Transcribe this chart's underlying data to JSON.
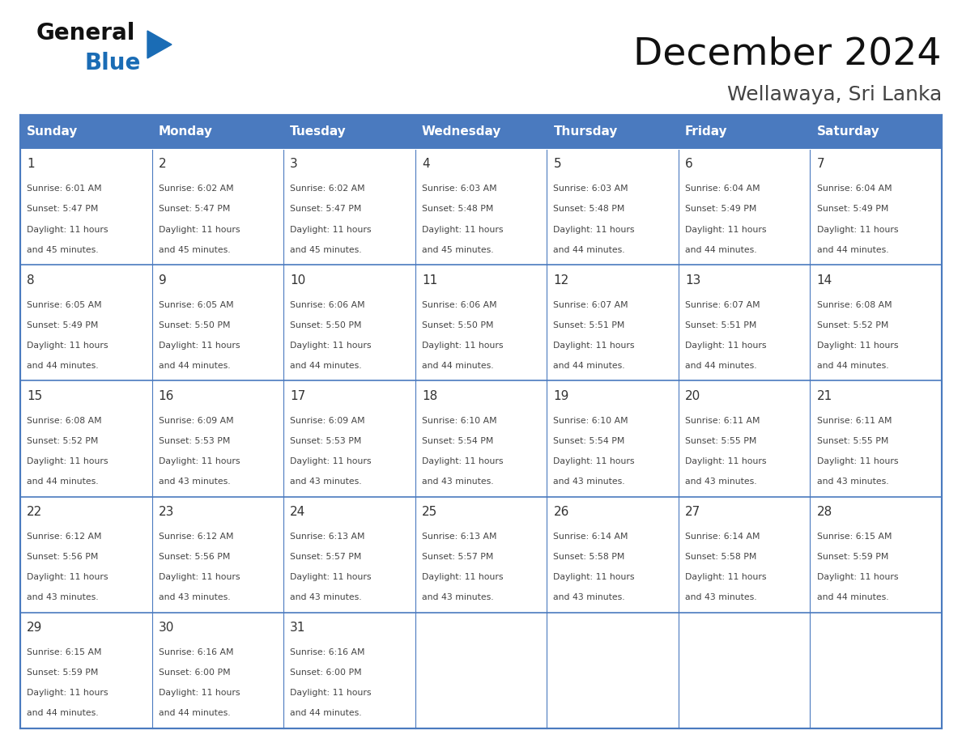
{
  "title": "December 2024",
  "subtitle": "Wellawaya, Sri Lanka",
  "days_of_week": [
    "Sunday",
    "Monday",
    "Tuesday",
    "Wednesday",
    "Thursday",
    "Friday",
    "Saturday"
  ],
  "header_bg_color": "#4a7abf",
  "header_text_color": "#FFFFFF",
  "cell_bg_color": "#FFFFFF",
  "cell_border_color": "#4a7abf",
  "row_separator_color": "#4a7abf",
  "day_number_color": "#333333",
  "cell_text_color": "#444444",
  "title_color": "#111111",
  "subtitle_color": "#444444",
  "logo_general_color": "#111111",
  "logo_blue_color": "#1a6cb5",
  "logo_triangle_color": "#1a6cb5",
  "calendar_data": [
    [
      {
        "day": 1,
        "sunrise": "6:01 AM",
        "sunset": "5:47 PM",
        "daylight": "11 hours and 45 minutes."
      },
      {
        "day": 2,
        "sunrise": "6:02 AM",
        "sunset": "5:47 PM",
        "daylight": "11 hours and 45 minutes."
      },
      {
        "day": 3,
        "sunrise": "6:02 AM",
        "sunset": "5:47 PM",
        "daylight": "11 hours and 45 minutes."
      },
      {
        "day": 4,
        "sunrise": "6:03 AM",
        "sunset": "5:48 PM",
        "daylight": "11 hours and 45 minutes."
      },
      {
        "day": 5,
        "sunrise": "6:03 AM",
        "sunset": "5:48 PM",
        "daylight": "11 hours and 44 minutes."
      },
      {
        "day": 6,
        "sunrise": "6:04 AM",
        "sunset": "5:49 PM",
        "daylight": "11 hours and 44 minutes."
      },
      {
        "day": 7,
        "sunrise": "6:04 AM",
        "sunset": "5:49 PM",
        "daylight": "11 hours and 44 minutes."
      }
    ],
    [
      {
        "day": 8,
        "sunrise": "6:05 AM",
        "sunset": "5:49 PM",
        "daylight": "11 hours and 44 minutes."
      },
      {
        "day": 9,
        "sunrise": "6:05 AM",
        "sunset": "5:50 PM",
        "daylight": "11 hours and 44 minutes."
      },
      {
        "day": 10,
        "sunrise": "6:06 AM",
        "sunset": "5:50 PM",
        "daylight": "11 hours and 44 minutes."
      },
      {
        "day": 11,
        "sunrise": "6:06 AM",
        "sunset": "5:50 PM",
        "daylight": "11 hours and 44 minutes."
      },
      {
        "day": 12,
        "sunrise": "6:07 AM",
        "sunset": "5:51 PM",
        "daylight": "11 hours and 44 minutes."
      },
      {
        "day": 13,
        "sunrise": "6:07 AM",
        "sunset": "5:51 PM",
        "daylight": "11 hours and 44 minutes."
      },
      {
        "day": 14,
        "sunrise": "6:08 AM",
        "sunset": "5:52 PM",
        "daylight": "11 hours and 44 minutes."
      }
    ],
    [
      {
        "day": 15,
        "sunrise": "6:08 AM",
        "sunset": "5:52 PM",
        "daylight": "11 hours and 44 minutes."
      },
      {
        "day": 16,
        "sunrise": "6:09 AM",
        "sunset": "5:53 PM",
        "daylight": "11 hours and 43 minutes."
      },
      {
        "day": 17,
        "sunrise": "6:09 AM",
        "sunset": "5:53 PM",
        "daylight": "11 hours and 43 minutes."
      },
      {
        "day": 18,
        "sunrise": "6:10 AM",
        "sunset": "5:54 PM",
        "daylight": "11 hours and 43 minutes."
      },
      {
        "day": 19,
        "sunrise": "6:10 AM",
        "sunset": "5:54 PM",
        "daylight": "11 hours and 43 minutes."
      },
      {
        "day": 20,
        "sunrise": "6:11 AM",
        "sunset": "5:55 PM",
        "daylight": "11 hours and 43 minutes."
      },
      {
        "day": 21,
        "sunrise": "6:11 AM",
        "sunset": "5:55 PM",
        "daylight": "11 hours and 43 minutes."
      }
    ],
    [
      {
        "day": 22,
        "sunrise": "6:12 AM",
        "sunset": "5:56 PM",
        "daylight": "11 hours and 43 minutes."
      },
      {
        "day": 23,
        "sunrise": "6:12 AM",
        "sunset": "5:56 PM",
        "daylight": "11 hours and 43 minutes."
      },
      {
        "day": 24,
        "sunrise": "6:13 AM",
        "sunset": "5:57 PM",
        "daylight": "11 hours and 43 minutes."
      },
      {
        "day": 25,
        "sunrise": "6:13 AM",
        "sunset": "5:57 PM",
        "daylight": "11 hours and 43 minutes."
      },
      {
        "day": 26,
        "sunrise": "6:14 AM",
        "sunset": "5:58 PM",
        "daylight": "11 hours and 43 minutes."
      },
      {
        "day": 27,
        "sunrise": "6:14 AM",
        "sunset": "5:58 PM",
        "daylight": "11 hours and 43 minutes."
      },
      {
        "day": 28,
        "sunrise": "6:15 AM",
        "sunset": "5:59 PM",
        "daylight": "11 hours and 44 minutes."
      }
    ],
    [
      {
        "day": 29,
        "sunrise": "6:15 AM",
        "sunset": "5:59 PM",
        "daylight": "11 hours and 44 minutes."
      },
      {
        "day": 30,
        "sunrise": "6:16 AM",
        "sunset": "6:00 PM",
        "daylight": "11 hours and 44 minutes."
      },
      {
        "day": 31,
        "sunrise": "6:16 AM",
        "sunset": "6:00 PM",
        "daylight": "11 hours and 44 minutes."
      },
      null,
      null,
      null,
      null
    ]
  ],
  "fig_width": 11.88,
  "fig_height": 9.18
}
